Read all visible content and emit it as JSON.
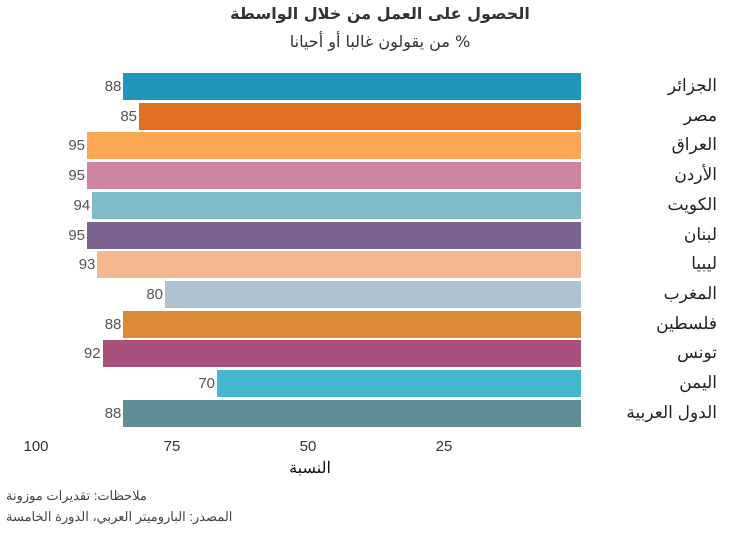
{
  "chart_data": {
    "type": "bar",
    "orientation": "horizontal",
    "title": "الحصول على العمل من خلال الواسطة",
    "subtitle": "% من يقولون غالبا أو أحيانا",
    "xlabel": "النسبة",
    "ylabel": "",
    "xlim": [
      100,
      0
    ],
    "x_reversed": true,
    "xticks": [
      "100",
      "75",
      "50",
      "25"
    ],
    "grid": false,
    "legend": null,
    "categories": [
      "الجزائر",
      "مصر",
      "العراق",
      "الأردن",
      "الكويت",
      "لبنان",
      "ليبيا",
      "المغرب",
      "فلسطين",
      "تونس",
      "اليمن",
      "الدول العربية"
    ],
    "values": [
      88,
      85,
      95,
      95,
      94,
      95,
      93,
      80,
      88,
      92,
      70,
      88
    ],
    "colors": [
      "#2196bb",
      "#e07023",
      "#f9a752",
      "#cf83a2",
      "#7dbcc8",
      "#7a6390",
      "#f5b78f",
      "#b0c2cf",
      "#db8b35",
      "#a9507c",
      "#42b9cd",
      "#5f8e97"
    ]
  },
  "notes": {
    "line1": "ملاحظات: تقديرات موزونة",
    "line2": "المصدر: الباروميتر العربي، الدورة الخامسة"
  }
}
